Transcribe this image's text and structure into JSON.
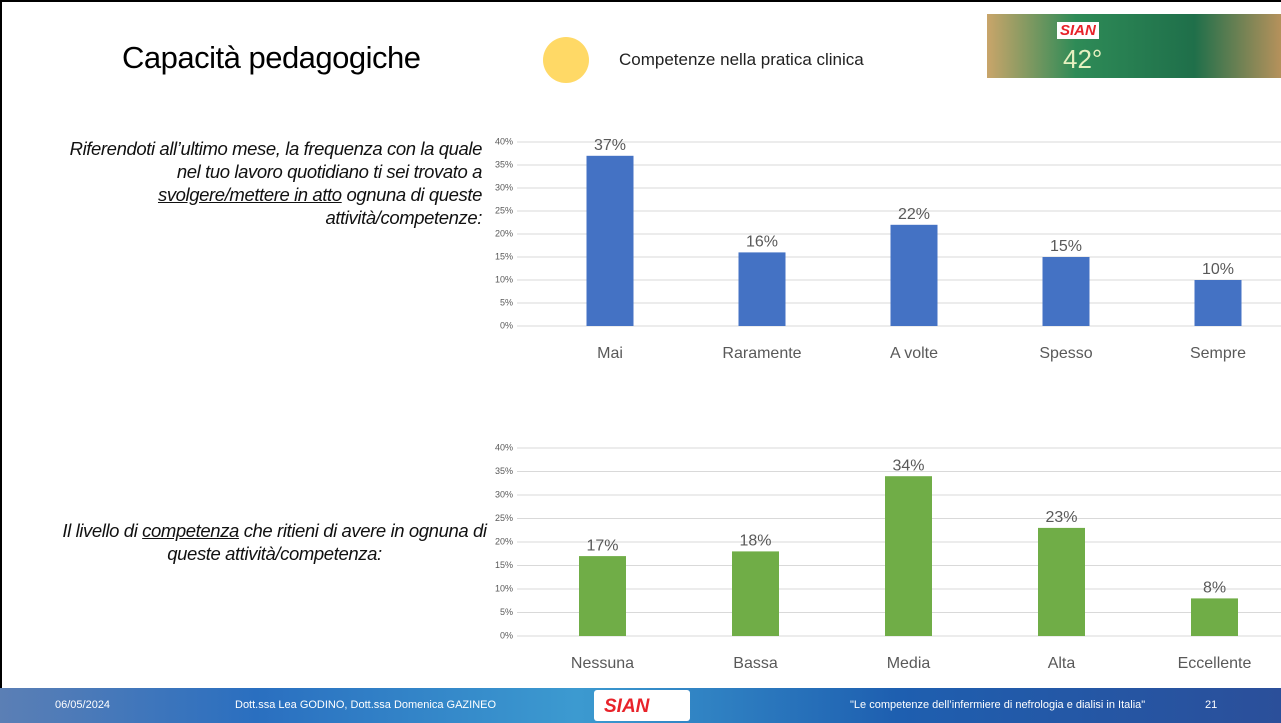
{
  "title": "Capacità pedagogiche",
  "legend": "Competenze nella pratica clinica",
  "logo": {
    "name": "SIAN",
    "number": "42°"
  },
  "question_1": [
    "Riferendoti all’ultimo mese, la frequenza con la quale nel tuo lavoro quotidiano ti sei trovato a ",
    "svolgere/mettere in atto",
    " ognuna di queste attività/competenze:"
  ],
  "question_2": [
    "Il livello di ",
    "competenza",
    " che ritieni di avere in ognuna di queste attività/competenza:"
  ],
  "footer": {
    "date": "06/05/2024",
    "authors": "Dott.ssa Lea GODINO, Dott.ssa Domenica GAZINEO",
    "logo": "SIAN",
    "quote": "\"Le competenze dell’infermiere di nefrologia e dialisi in Italia\"",
    "page": "21"
  },
  "chart_data": [
    {
      "type": "bar",
      "categories": [
        "Mai",
        "Raramente",
        "A volte",
        "Spesso",
        "Sempre"
      ],
      "values": [
        37,
        16,
        22,
        15,
        10
      ],
      "value_labels": [
        "37%",
        "16%",
        "22%",
        "15%",
        "10%"
      ],
      "color": "#4472c4",
      "ylim": [
        0,
        40
      ],
      "yticks": [
        {
          "value": 0,
          "label": "0%"
        },
        {
          "value": 5,
          "label": "5%"
        },
        {
          "value": 10,
          "label": "10%"
        },
        {
          "value": 15,
          "label": "15%"
        },
        {
          "value": 20,
          "label": "20%"
        },
        {
          "value": 25,
          "label": "25%"
        },
        {
          "value": 30,
          "label": "30%"
        },
        {
          "value": 35,
          "label": "35%"
        },
        {
          "value": 40,
          "label": "40%"
        }
      ],
      "grid": true
    },
    {
      "type": "bar",
      "categories": [
        "Nessuna",
        "Bassa",
        "Media",
        "Alta",
        "Eccellente"
      ],
      "values": [
        17,
        18,
        34,
        23,
        8
      ],
      "value_labels": [
        "17%",
        "18%",
        "34%",
        "23%",
        "8%"
      ],
      "color": "#70ad47",
      "ylim": [
        0,
        40
      ],
      "yticks": [
        {
          "value": 0,
          "label": "0%"
        },
        {
          "value": 5,
          "label": "5%"
        },
        {
          "value": 10,
          "label": "10%"
        },
        {
          "value": 15,
          "label": "15%"
        },
        {
          "value": 20,
          "label": "20%"
        },
        {
          "value": 25,
          "label": "25%"
        },
        {
          "value": 30,
          "label": "30%"
        },
        {
          "value": 35,
          "label": "35%"
        },
        {
          "value": 40,
          "label": "40%"
        }
      ],
      "grid": true
    }
  ]
}
